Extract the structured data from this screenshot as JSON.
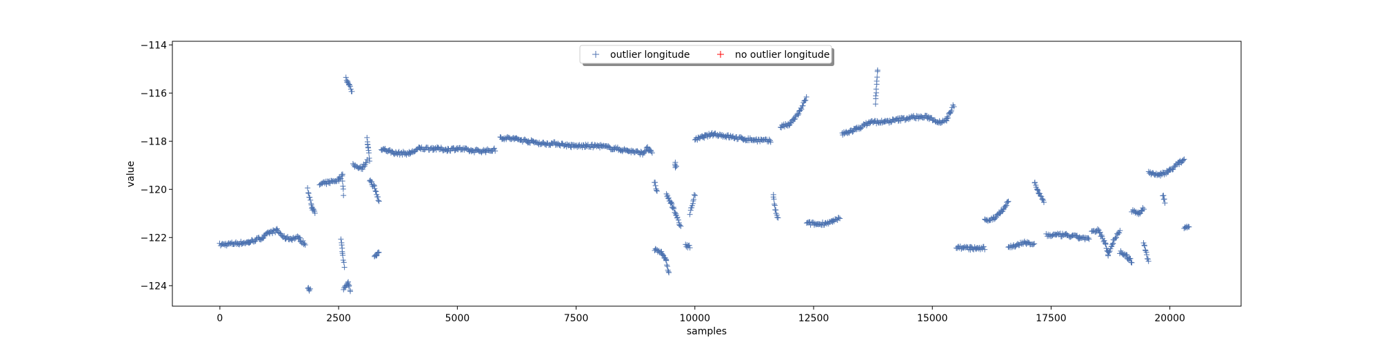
{
  "chart_data": {
    "type": "scatter",
    "title": "",
    "xlabel": "samples",
    "ylabel": "value",
    "xlim": [
      -1000,
      21500
    ],
    "ylim": [
      -124.85,
      -113.85
    ],
    "xticks": [
      0,
      2500,
      5000,
      7500,
      10000,
      12500,
      15000,
      17500,
      20000
    ],
    "yticks": [
      -124,
      -122,
      -120,
      -118,
      -116,
      -114
    ],
    "grid": false,
    "legend_position": "top-center",
    "colors": {
      "outlier": "#4c72b0",
      "no_outlier": "#ff0000"
    },
    "series": [
      {
        "name": "outlier longitude",
        "marker": "plus",
        "segments": [
          [
            [
              0,
              -122.3
            ],
            [
              300,
              -122.25
            ],
            [
              600,
              -122.2
            ],
            [
              900,
              -122.0
            ],
            [
              1050,
              -121.8
            ],
            [
              1200,
              -121.7
            ],
            [
              1350,
              -122.0
            ],
            [
              1500,
              -122.05
            ],
            [
              1650,
              -122.0
            ],
            [
              1800,
              -122.3
            ]
          ],
          [
            [
              1850,
              -124.1
            ],
            [
              1900,
              -124.2
            ]
          ],
          [
            [
              1850,
              -120.0
            ],
            [
              1950,
              -120.8
            ],
            [
              2000,
              -121.0
            ]
          ],
          [
            [
              2100,
              -119.8
            ],
            [
              2300,
              -119.7
            ],
            [
              2500,
              -119.6
            ],
            [
              2580,
              -119.4
            ],
            [
              2600,
              -120.2
            ]
          ],
          [
            [
              2550,
              -122.1
            ],
            [
              2580,
              -122.6
            ],
            [
              2620,
              -123.2
            ]
          ],
          [
            [
              2600,
              -124.1
            ],
            [
              2700,
              -123.9
            ],
            [
              2750,
              -124.2
            ]
          ],
          [
            [
              2650,
              -115.4
            ],
            [
              2720,
              -115.6
            ],
            [
              2780,
              -116.0
            ]
          ],
          [
            [
              2800,
              -119.0
            ],
            [
              3000,
              -119.1
            ],
            [
              3100,
              -118.8
            ]
          ],
          [
            [
              3100,
              -117.9
            ],
            [
              3120,
              -118.3
            ],
            [
              3150,
              -118.8
            ]
          ],
          [
            [
              3150,
              -119.6
            ],
            [
              3250,
              -119.9
            ],
            [
              3350,
              -120.5
            ]
          ],
          [
            [
              3250,
              -122.8
            ],
            [
              3350,
              -122.6
            ]
          ],
          [
            [
              3400,
              -118.3
            ],
            [
              3700,
              -118.5
            ],
            [
              4000,
              -118.5
            ],
            [
              4200,
              -118.3
            ],
            [
              4500,
              -118.3
            ],
            [
              4800,
              -118.35
            ],
            [
              5000,
              -118.3
            ],
            [
              5300,
              -118.4
            ],
            [
              5600,
              -118.4
            ],
            [
              5800,
              -118.35
            ]
          ],
          [
            [
              5900,
              -117.85
            ],
            [
              6200,
              -117.9
            ],
            [
              6500,
              -118.0
            ],
            [
              6800,
              -118.1
            ],
            [
              7100,
              -118.1
            ],
            [
              7400,
              -118.2
            ],
            [
              7700,
              -118.2
            ],
            [
              8000,
              -118.2
            ],
            [
              8300,
              -118.3
            ],
            [
              8600,
              -118.4
            ],
            [
              8900,
              -118.5
            ],
            [
              9000,
              -118.3
            ],
            [
              9100,
              -118.5
            ]
          ],
          [
            [
              9150,
              -119.7
            ],
            [
              9200,
              -120.1
            ]
          ],
          [
            [
              9150,
              -122.5
            ],
            [
              9300,
              -122.6
            ],
            [
              9400,
              -123.0
            ],
            [
              9450,
              -123.5
            ]
          ],
          [
            [
              9400,
              -120.2
            ],
            [
              9500,
              -120.6
            ],
            [
              9600,
              -121.0
            ],
            [
              9700,
              -121.6
            ]
          ],
          [
            [
              9600,
              -119.0
            ]
          ],
          [
            [
              9800,
              -122.3
            ],
            [
              9900,
              -122.4
            ]
          ],
          [
            [
              9900,
              -121.0
            ],
            [
              10000,
              -120.2
            ]
          ],
          [
            [
              10000,
              -117.95
            ],
            [
              10200,
              -117.8
            ],
            [
              10400,
              -117.7
            ],
            [
              10700,
              -117.8
            ],
            [
              11000,
              -117.9
            ],
            [
              11300,
              -117.95
            ],
            [
              11600,
              -118.0
            ]
          ],
          [
            [
              11650,
              -120.2
            ],
            [
              11700,
              -120.9
            ],
            [
              11750,
              -121.2
            ]
          ],
          [
            [
              11800,
              -117.4
            ],
            [
              12000,
              -117.3
            ],
            [
              12200,
              -116.8
            ],
            [
              12350,
              -116.2
            ]
          ],
          [
            [
              12350,
              -121.4
            ],
            [
              12600,
              -121.45
            ],
            [
              12900,
              -121.35
            ],
            [
              13050,
              -121.2
            ]
          ],
          [
            [
              13100,
              -117.7
            ],
            [
              13400,
              -117.5
            ],
            [
              13700,
              -117.2
            ],
            [
              14000,
              -117.2
            ],
            [
              14300,
              -117.1
            ],
            [
              14600,
              -117.0
            ],
            [
              14900,
              -117.0
            ],
            [
              15150,
              -117.2
            ],
            [
              15300,
              -117.1
            ],
            [
              15450,
              -116.5
            ]
          ],
          [
            [
              13800,
              -116.4
            ],
            [
              13850,
              -115.0
            ]
          ],
          [
            [
              15500,
              -122.4
            ],
            [
              15800,
              -122.45
            ],
            [
              16100,
              -122.45
            ]
          ],
          [
            [
              16100,
              -121.3
            ],
            [
              16300,
              -121.2
            ],
            [
              16500,
              -120.8
            ],
            [
              16600,
              -120.5
            ]
          ],
          [
            [
              16600,
              -122.4
            ],
            [
              16800,
              -122.3
            ],
            [
              17000,
              -122.2
            ],
            [
              17150,
              -122.3
            ]
          ],
          [
            [
              17150,
              -119.7
            ],
            [
              17250,
              -120.2
            ],
            [
              17350,
              -120.5
            ]
          ],
          [
            [
              17400,
              -121.9
            ],
            [
              17800,
              -121.9
            ],
            [
              18100,
              -122.0
            ],
            [
              18300,
              -122.05
            ]
          ],
          [
            [
              18350,
              -121.8
            ],
            [
              18500,
              -121.7
            ],
            [
              18650,
              -122.3
            ],
            [
              18700,
              -122.7
            ],
            [
              18800,
              -122.2
            ],
            [
              18950,
              -121.7
            ]
          ],
          [
            [
              18950,
              -122.6
            ],
            [
              19100,
              -122.8
            ],
            [
              19200,
              -123.0
            ]
          ],
          [
            [
              19200,
              -120.9
            ],
            [
              19350,
              -121.0
            ],
            [
              19450,
              -120.8
            ]
          ],
          [
            [
              19450,
              -122.2
            ],
            [
              19550,
              -123.0
            ]
          ],
          [
            [
              19550,
              -119.3
            ],
            [
              19800,
              -119.4
            ],
            [
              20000,
              -119.2
            ],
            [
              20200,
              -118.9
            ],
            [
              20300,
              -118.75
            ]
          ],
          [
            [
              19850,
              -120.2
            ],
            [
              19900,
              -120.5
            ]
          ],
          [
            [
              20300,
              -121.6
            ],
            [
              20400,
              -121.5
            ]
          ]
        ]
      },
      {
        "name": "no outlier longitude",
        "marker": "plus",
        "segments": []
      }
    ]
  }
}
